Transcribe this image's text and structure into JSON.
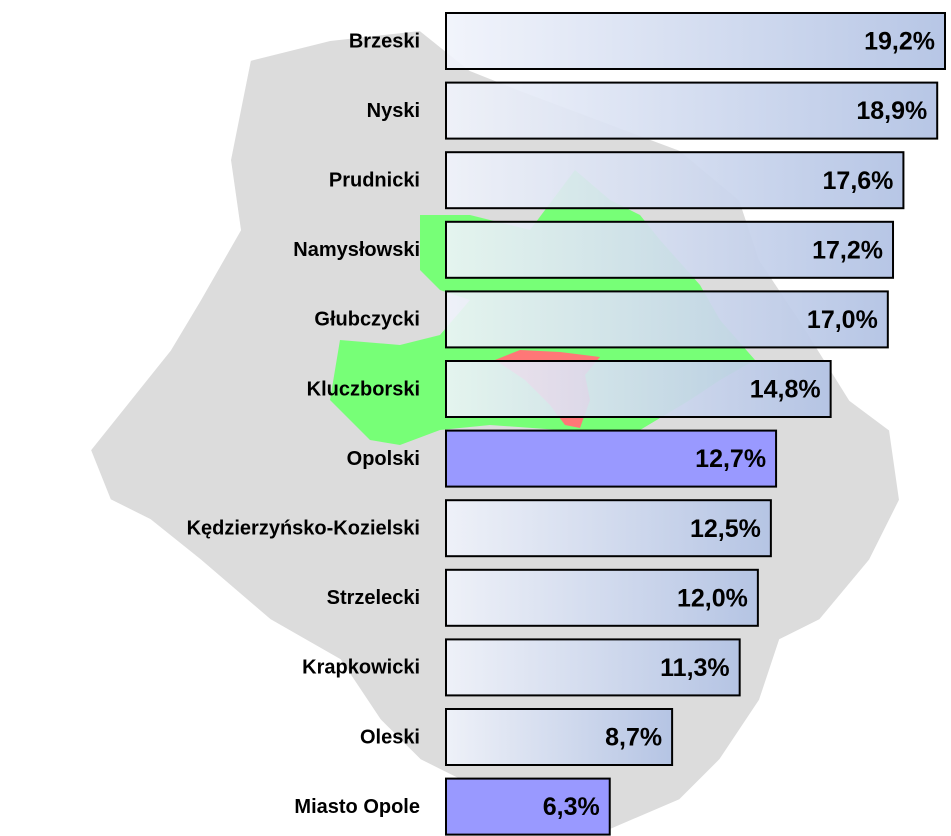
{
  "chart_data": {
    "type": "bar",
    "orientation": "horizontal",
    "categories": [
      "Brzeski",
      "Nyski",
      "Prudnicki",
      "Namysłowski",
      "Głubczycki",
      "Kluczborski",
      "Opolski",
      "Kędzierzyńsko-Kozielski",
      "Strzelecki",
      "Krapkowicki",
      "Oleski",
      "Miasto Opole"
    ],
    "values": [
      19.2,
      18.9,
      17.6,
      17.2,
      17.0,
      14.8,
      12.7,
      12.5,
      12.0,
      11.3,
      8.7,
      6.3
    ],
    "value_labels": [
      "19,2%",
      "18,9%",
      "17,6%",
      "17,2%",
      "17,0%",
      "14,8%",
      "12,7%",
      "12,5%",
      "12,0%",
      "11,3%",
      "8,7%",
      "6,3%"
    ],
    "colors": [
      "gradient",
      "gradient",
      "gradient",
      "gradient",
      "gradient",
      "gradient",
      "#9999ff",
      "gradient",
      "gradient",
      "gradient",
      "gradient",
      "#9999ff"
    ]
  }
}
